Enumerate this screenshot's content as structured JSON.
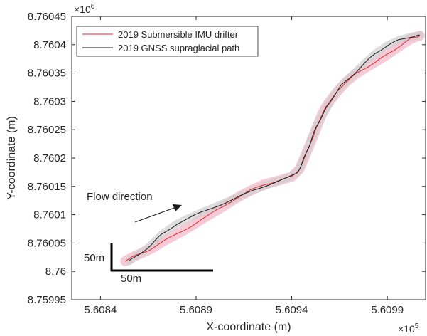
{
  "chart_data": {
    "type": "line",
    "xlabel": "X-coordinate (m)",
    "ylabel": "Y-coordinate (m)",
    "xlim": [
      560825,
      561010
    ],
    "ylim": [
      8759950,
      8760450
    ],
    "x_ticks": [
      560840,
      560890,
      560940,
      560990
    ],
    "x_tick_labels": [
      "5.6084",
      "5.6089",
      "5.6094",
      "5.6099"
    ],
    "x_exponent": {
      "base": "×10",
      "power": "5"
    },
    "y_ticks": [
      8759950,
      8760000,
      8760050,
      8760100,
      8760150,
      8760200,
      8760250,
      8760300,
      8760350,
      8760400,
      8760450
    ],
    "y_tick_labels": [
      "8.75995",
      "8.76",
      "8.76005",
      "8.7601",
      "8.76015",
      "8.7602",
      "8.76025",
      "8.7603",
      "8.76035",
      "8.7604",
      "8.76045"
    ],
    "y_exponent": {
      "base": "×10",
      "power": "6"
    },
    "grid": false,
    "legend_position": "top-left",
    "series": [
      {
        "name": "2019 Submersible IMU drifter",
        "color": "#e8262c",
        "band_color": "#f4b8cb",
        "x": [
          560853,
          560858,
          560866,
          560874,
          560884,
          560893,
          560902,
          560910,
          560918,
          560926,
          560934,
          560940,
          560944,
          560946,
          560948,
          560950,
          560952,
          560954,
          560956,
          560958,
          560961,
          560964,
          560968,
          560973,
          560979,
          560985,
          560991,
          560997,
          561002,
          561007
        ],
        "y": [
          8760018,
          8760027,
          8760039,
          8760055,
          8760073,
          8760092,
          8760110,
          8760127,
          8760142,
          8760154,
          8760161,
          8760167,
          8760180,
          8760195,
          8760212,
          8760228,
          8760245,
          8760262,
          8760278,
          8760291,
          8760305,
          8760318,
          8760333,
          8760347,
          8760360,
          8760372,
          8760385,
          8760399,
          8760410,
          8760416
        ]
      },
      {
        "name": "2019 GNSS supraglacial path",
        "color": "#1a1a1a",
        "band_color": "#cfcfcf",
        "x": [
          560855,
          560860,
          560866,
          560872,
          560880,
          560890,
          560900,
          560910,
          560920,
          560930,
          560938,
          560943,
          560945,
          560947,
          560949,
          560951,
          560953,
          560956,
          560959,
          560962,
          560966,
          560972,
          560978,
          560984,
          560990,
          560996,
          561002,
          561007
        ],
        "y": [
          8760018,
          8760030,
          8760045,
          8760065,
          8760084,
          8760100,
          8760114,
          8760128,
          8760143,
          8760156,
          8760165,
          8760175,
          8760188,
          8760204,
          8760221,
          8760238,
          8760257,
          8760275,
          8760293,
          8760310,
          8760328,
          8760347,
          8760367,
          8760385,
          8760399,
          8760408,
          8760414,
          8760417
        ]
      }
    ],
    "annotations": {
      "flow_text": "Flow direction",
      "scale_vertical": "50m",
      "scale_horizontal": "50m"
    }
  }
}
